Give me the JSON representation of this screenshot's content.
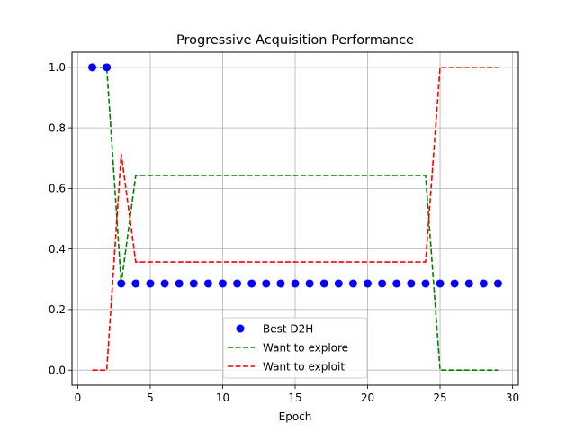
{
  "chart_data": {
    "type": "line",
    "title": "Progressive Acquisition Performance",
    "xlabel": "Epoch",
    "ylabel": "",
    "xlim": [
      -0.4,
      30.4
    ],
    "ylim": [
      -0.05,
      1.05
    ],
    "xticks": [
      0,
      5,
      10,
      15,
      20,
      25,
      30
    ],
    "yticks": [
      0.0,
      0.2,
      0.4,
      0.6,
      0.8,
      1.0
    ],
    "grid": true,
    "legend_position": "lower center",
    "series": [
      {
        "name": "Best D2H",
        "kind": "scatter",
        "color": "#0000ff",
        "x": [
          1,
          2,
          3,
          4,
          5,
          6,
          7,
          8,
          9,
          10,
          11,
          12,
          13,
          14,
          15,
          16,
          17,
          18,
          19,
          20,
          21,
          22,
          23,
          24,
          25,
          26,
          27,
          28,
          29
        ],
        "y": [
          1.0,
          1.0,
          0.286,
          0.286,
          0.286,
          0.286,
          0.286,
          0.286,
          0.286,
          0.286,
          0.286,
          0.286,
          0.286,
          0.286,
          0.286,
          0.286,
          0.286,
          0.286,
          0.286,
          0.286,
          0.286,
          0.286,
          0.286,
          0.286,
          0.286,
          0.286,
          0.286,
          0.286,
          0.286
        ]
      },
      {
        "name": "Want to explore",
        "kind": "line",
        "style": "dashed",
        "color": "#008000",
        "x": [
          1,
          2,
          3,
          4,
          5,
          6,
          7,
          8,
          9,
          10,
          11,
          12,
          13,
          14,
          15,
          16,
          17,
          18,
          19,
          20,
          21,
          22,
          23,
          24,
          25,
          26,
          27,
          28,
          29
        ],
        "y": [
          1.0,
          1.0,
          0.286,
          0.643,
          0.643,
          0.643,
          0.643,
          0.643,
          0.643,
          0.643,
          0.643,
          0.643,
          0.643,
          0.643,
          0.643,
          0.643,
          0.643,
          0.643,
          0.643,
          0.643,
          0.643,
          0.643,
          0.643,
          0.643,
          0.0,
          0.0,
          0.0,
          0.0,
          0.0
        ]
      },
      {
        "name": "Want to exploit",
        "kind": "line",
        "style": "dashed",
        "color": "#ff0000",
        "x": [
          1,
          2,
          3,
          4,
          5,
          6,
          7,
          8,
          9,
          10,
          11,
          12,
          13,
          14,
          15,
          16,
          17,
          18,
          19,
          20,
          21,
          22,
          23,
          24,
          25,
          26,
          27,
          28,
          29
        ],
        "y": [
          0.0,
          0.0,
          0.714,
          0.357,
          0.357,
          0.357,
          0.357,
          0.357,
          0.357,
          0.357,
          0.357,
          0.357,
          0.357,
          0.357,
          0.357,
          0.357,
          0.357,
          0.357,
          0.357,
          0.357,
          0.357,
          0.357,
          0.357,
          0.357,
          1.0,
          1.0,
          1.0,
          1.0,
          1.0
        ]
      }
    ]
  }
}
